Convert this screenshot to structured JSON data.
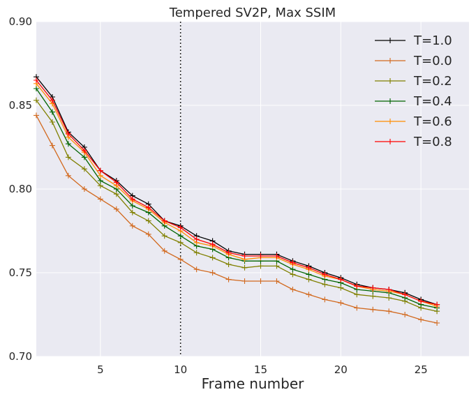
{
  "chart_data": {
    "type": "line",
    "title": "Tempered SV2P, Max SSIM",
    "xlabel": "Frame number",
    "ylabel": "",
    "xlim": [
      1,
      28
    ],
    "ylim": [
      0.7,
      0.9
    ],
    "xticks": [
      5,
      10,
      15,
      20,
      25
    ],
    "xtick_labels": [
      "5",
      "10",
      "15",
      "20",
      "25"
    ],
    "yticks": [
      0.7,
      0.75,
      0.8,
      0.85,
      0.9
    ],
    "ytick_labels": [
      "0.70",
      "0.75",
      "0.80",
      "0.85",
      "0.90"
    ],
    "grid": true,
    "legend_position": "top-right",
    "vline_x": 10,
    "x": [
      1,
      2,
      3,
      4,
      5,
      6,
      7,
      8,
      9,
      10,
      11,
      12,
      13,
      14,
      15,
      16,
      17,
      18,
      19,
      20,
      21,
      22,
      23,
      24,
      25,
      26
    ],
    "series": [
      {
        "name": "T=1.0",
        "color": "#000000",
        "values": [
          0.867,
          0.855,
          0.834,
          0.825,
          0.811,
          0.805,
          0.796,
          0.791,
          0.781,
          0.778,
          0.772,
          0.769,
          0.763,
          0.761,
          0.761,
          0.761,
          0.757,
          0.754,
          0.75,
          0.747,
          0.743,
          0.741,
          0.74,
          0.738,
          0.734,
          0.731
        ]
      },
      {
        "name": "T=0.0",
        "color": "#d2691e",
        "values": [
          0.844,
          0.826,
          0.808,
          0.8,
          0.794,
          0.788,
          0.778,
          0.773,
          0.763,
          0.758,
          0.752,
          0.75,
          0.746,
          0.745,
          0.745,
          0.745,
          0.74,
          0.737,
          0.734,
          0.732,
          0.729,
          0.728,
          0.727,
          0.725,
          0.722,
          0.72
        ]
      },
      {
        "name": "T=0.2",
        "color": "#808000",
        "values": [
          0.853,
          0.84,
          0.819,
          0.812,
          0.802,
          0.797,
          0.786,
          0.781,
          0.772,
          0.768,
          0.762,
          0.759,
          0.755,
          0.753,
          0.754,
          0.754,
          0.749,
          0.746,
          0.743,
          0.741,
          0.737,
          0.736,
          0.735,
          0.733,
          0.729,
          0.727
        ]
      },
      {
        "name": "T=0.4",
        "color": "#006400",
        "values": [
          0.86,
          0.846,
          0.827,
          0.819,
          0.805,
          0.8,
          0.79,
          0.786,
          0.778,
          0.772,
          0.766,
          0.764,
          0.759,
          0.757,
          0.757,
          0.757,
          0.752,
          0.749,
          0.746,
          0.744,
          0.74,
          0.739,
          0.738,
          0.735,
          0.731,
          0.729
        ]
      },
      {
        "name": "T=0.6",
        "color": "#ff8c00",
        "values": [
          0.863,
          0.851,
          0.831,
          0.822,
          0.808,
          0.802,
          0.793,
          0.788,
          0.78,
          0.775,
          0.768,
          0.766,
          0.761,
          0.758,
          0.759,
          0.759,
          0.755,
          0.752,
          0.748,
          0.746,
          0.742,
          0.74,
          0.739,
          0.737,
          0.733,
          0.73
        ]
      },
      {
        "name": "T=0.8",
        "color": "#ff0000",
        "values": [
          0.865,
          0.853,
          0.833,
          0.823,
          0.811,
          0.804,
          0.794,
          0.789,
          0.781,
          0.777,
          0.77,
          0.767,
          0.762,
          0.76,
          0.76,
          0.76,
          0.756,
          0.753,
          0.749,
          0.746,
          0.742,
          0.741,
          0.74,
          0.737,
          0.733,
          0.731
        ]
      }
    ]
  }
}
